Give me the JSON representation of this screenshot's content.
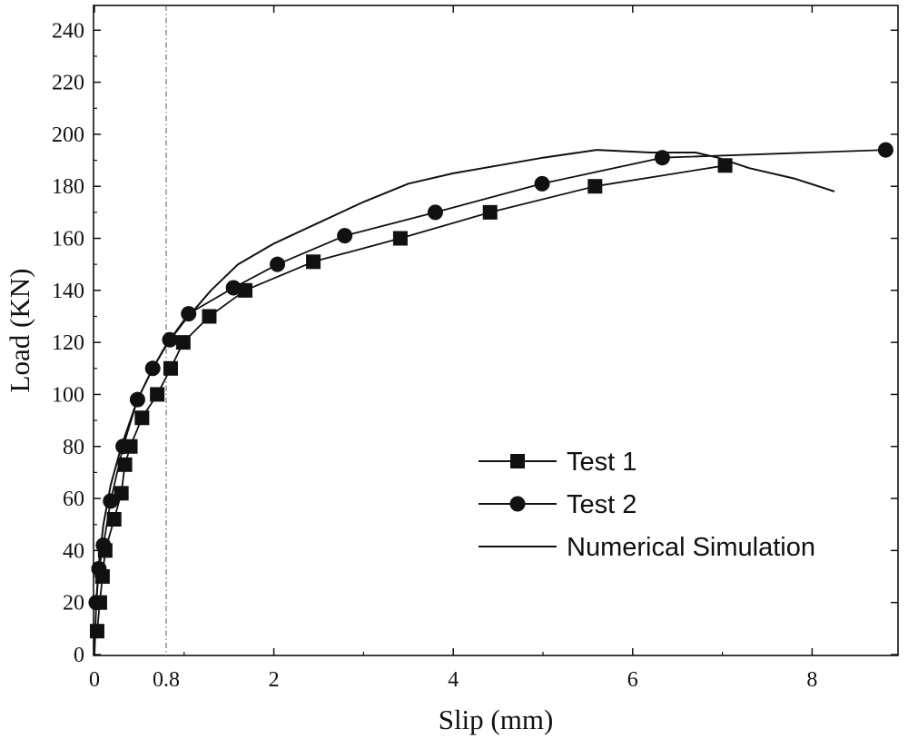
{
  "chart_data": {
    "type": "line",
    "title": "",
    "xlabel": "Slip (mm)",
    "ylabel": "Load (KN)",
    "xlim": [
      0,
      9
    ],
    "ylim": [
      0,
      245
    ],
    "x_ticks": [
      {
        "value": 0,
        "label": "0"
      },
      {
        "value": 0.8,
        "label": "0.8"
      },
      {
        "value": 2,
        "label": "2"
      },
      {
        "value": 4,
        "label": "4"
      },
      {
        "value": 6,
        "label": "6"
      },
      {
        "value": 8,
        "label": "8"
      }
    ],
    "y_ticks": [
      0,
      20,
      40,
      60,
      80,
      100,
      120,
      140,
      160,
      180,
      200,
      220,
      240
    ],
    "reference_line": {
      "x": 0.8,
      "style": "dash-dot"
    },
    "legend_position": "bottom-right",
    "grid": false,
    "series": [
      {
        "name": "Test 1",
        "marker": "square",
        "line": "solid",
        "color": "#111111",
        "points": [
          [
            0.03,
            9
          ],
          [
            0.06,
            20
          ],
          [
            0.09,
            30
          ],
          [
            0.12,
            40
          ],
          [
            0.22,
            52
          ],
          [
            0.3,
            62
          ],
          [
            0.34,
            73
          ],
          [
            0.4,
            80
          ],
          [
            0.53,
            91
          ],
          [
            0.7,
            100
          ],
          [
            0.85,
            110
          ],
          [
            0.99,
            120
          ],
          [
            1.28,
            130
          ],
          [
            1.68,
            140
          ],
          [
            2.44,
            151
          ],
          [
            3.41,
            160
          ],
          [
            4.41,
            170
          ],
          [
            5.58,
            180
          ],
          [
            7.03,
            188
          ]
        ]
      },
      {
        "name": "Test 2",
        "marker": "circle",
        "line": "solid",
        "color": "#111111",
        "points": [
          [
            0.02,
            20
          ],
          [
            0.05,
            33
          ],
          [
            0.1,
            42
          ],
          [
            0.18,
            59
          ],
          [
            0.32,
            80
          ],
          [
            0.48,
            98
          ],
          [
            0.65,
            110
          ],
          [
            0.84,
            121
          ],
          [
            1.05,
            131
          ],
          [
            1.55,
            141
          ],
          [
            2.04,
            150
          ],
          [
            2.79,
            161
          ],
          [
            3.8,
            170
          ],
          [
            4.99,
            181
          ],
          [
            6.33,
            191
          ],
          [
            8.82,
            194
          ]
        ]
      },
      {
        "name": "Numerical Simulation",
        "marker": "none",
        "line": "solid",
        "color": "#111111",
        "points": [
          [
            0.0,
            0
          ],
          [
            0.02,
            20
          ],
          [
            0.05,
            35
          ],
          [
            0.1,
            50
          ],
          [
            0.18,
            65
          ],
          [
            0.3,
            80
          ],
          [
            0.48,
            98
          ],
          [
            0.65,
            110
          ],
          [
            0.8,
            119
          ],
          [
            1.0,
            128
          ],
          [
            1.3,
            140
          ],
          [
            1.6,
            150
          ],
          [
            2.0,
            158
          ],
          [
            2.5,
            166
          ],
          [
            3.0,
            174
          ],
          [
            3.5,
            181
          ],
          [
            4.0,
            185
          ],
          [
            4.5,
            188
          ],
          [
            5.0,
            191
          ],
          [
            5.6,
            194
          ],
          [
            6.2,
            193
          ],
          [
            6.7,
            193
          ],
          [
            6.95,
            191
          ],
          [
            7.3,
            187
          ],
          [
            7.8,
            183
          ],
          [
            8.25,
            178
          ]
        ]
      }
    ]
  }
}
